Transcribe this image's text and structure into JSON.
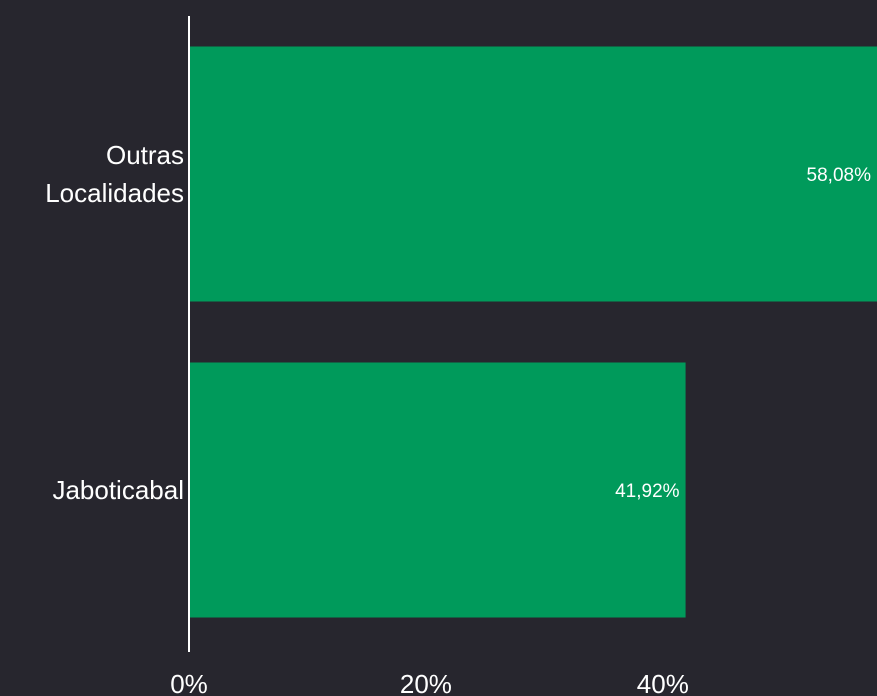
{
  "chart_data": {
    "type": "bar",
    "orientation": "horizontal",
    "categories": [
      "Outras Localidades",
      "Jaboticabal"
    ],
    "category_lines": [
      [
        "Outras",
        "Localidades"
      ],
      [
        "Jaboticabal"
      ]
    ],
    "values": [
      58.08,
      41.92
    ],
    "value_labels": [
      "58,08%",
      "41,92%"
    ],
    "x_ticks": [
      0,
      20,
      40
    ],
    "x_tick_labels": [
      "0%",
      "20%",
      "40%"
    ],
    "xlim": [
      0,
      58.08
    ],
    "title": "",
    "xlabel": "",
    "ylabel": "",
    "grid": false,
    "legend": "none"
  },
  "colors": {
    "background": "#27262e",
    "bar": "#009a5b",
    "axis": "#ffffff",
    "text": "#ffffff"
  }
}
